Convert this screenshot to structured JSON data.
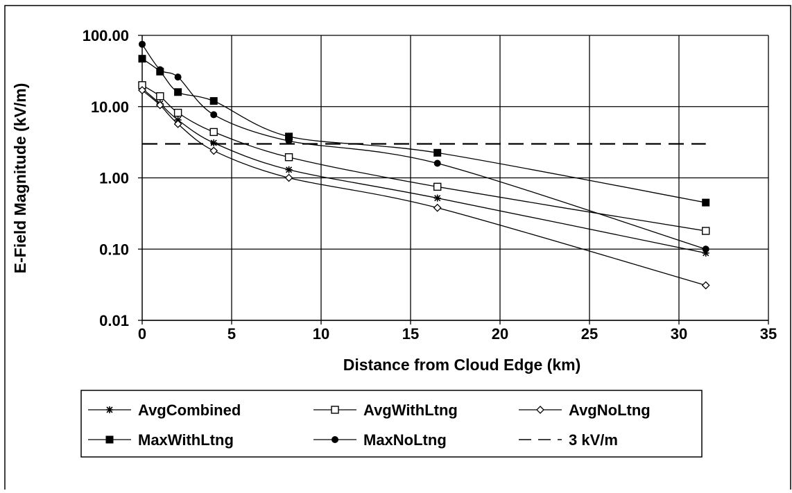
{
  "chart_data": {
    "type": "line",
    "title": "",
    "xlabel": "Distance from Cloud Edge (km)",
    "ylabel": "E-Field Magnitude (kV/m)",
    "xlim": [
      0,
      35
    ],
    "ylim": [
      0.01,
      100
    ],
    "y_scale": "log",
    "grid": true,
    "legend_position": "bottom",
    "x_ticks": [
      "0",
      "5",
      "10",
      "15",
      "20",
      "25",
      "30",
      "35"
    ],
    "y_ticks": [
      "0.01",
      "0.10",
      "1.00",
      "10.00",
      "100.00"
    ],
    "series": [
      {
        "name": "AvgCombined",
        "marker": "star",
        "line": "solid",
        "x": [
          0,
          1,
          2,
          4,
          8.2,
          16.5,
          31.5
        ],
        "y": [
          18,
          11,
          6.5,
          3.1,
          1.3,
          0.52,
          0.088
        ]
      },
      {
        "name": "AvgWithLtng",
        "marker": "open-square",
        "line": "solid",
        "x": [
          0,
          1,
          2,
          4,
          8.2,
          16.5,
          31.5
        ],
        "y": [
          20,
          14,
          8.2,
          4.4,
          1.95,
          0.75,
          0.18
        ]
      },
      {
        "name": "AvgNoLtng",
        "marker": "open-diamond",
        "line": "solid",
        "x": [
          0,
          1,
          2,
          4,
          8.2,
          16.5,
          31.5
        ],
        "y": [
          17,
          10.5,
          5.7,
          2.4,
          1.0,
          0.38,
          0.031
        ]
      },
      {
        "name": "MaxWithLtng",
        "marker": "filled-square",
        "line": "solid",
        "x": [
          0,
          1,
          2,
          4,
          8.2,
          16.5,
          31.5
        ],
        "y": [
          47,
          31,
          16,
          12,
          3.8,
          2.25,
          0.45
        ]
      },
      {
        "name": "MaxNoLtng",
        "marker": "filled-circle",
        "line": "solid",
        "x": [
          0,
          1,
          2,
          4,
          8.2,
          16.5,
          31.5
        ],
        "y": [
          75,
          33,
          26,
          7.7,
          3.3,
          1.6,
          0.1
        ]
      },
      {
        "name": "3 kV/m",
        "marker": "none",
        "line": "dashed",
        "x": [
          0,
          31.5
        ],
        "y": [
          3,
          3
        ]
      }
    ]
  }
}
